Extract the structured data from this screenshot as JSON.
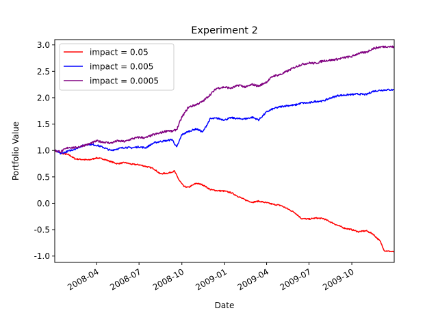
{
  "chart_data": {
    "type": "line",
    "title": "Experiment 2",
    "xlabel": "Date",
    "ylabel": "Portfolio Value",
    "x_range": [
      "2008-01-02",
      "2009-12-31"
    ],
    "xlim": [
      "2008-01-02",
      "2009-12-31"
    ],
    "ylim": [
      -1.12,
      3.1
    ],
    "x_ticks": [
      "2008-04",
      "2008-07",
      "2008-10",
      "2009-01",
      "2009-04",
      "2009-07",
      "2009-10"
    ],
    "y_ticks": [
      "-1.0",
      "-0.5",
      "0.0",
      "0.5",
      "1.0",
      "1.5",
      "2.0",
      "2.5",
      "3.0"
    ],
    "grid": false,
    "legend_position": "top-left",
    "series": [
      {
        "name": "impact = 0.05",
        "color": "#ff0000",
        "points": [
          [
            "2008-01-02",
            1.0
          ],
          [
            "2008-01-15",
            0.95
          ],
          [
            "2008-02-01",
            0.92
          ],
          [
            "2008-02-15",
            0.84
          ],
          [
            "2008-03-01",
            0.83
          ],
          [
            "2008-03-15",
            0.82
          ],
          [
            "2008-04-01",
            0.86
          ],
          [
            "2008-04-15",
            0.84
          ],
          [
            "2008-05-01",
            0.79
          ],
          [
            "2008-05-15",
            0.75
          ],
          [
            "2008-06-01",
            0.77
          ],
          [
            "2008-06-15",
            0.74
          ],
          [
            "2008-07-01",
            0.73
          ],
          [
            "2008-07-15",
            0.7
          ],
          [
            "2008-08-01",
            0.66
          ],
          [
            "2008-08-15",
            0.56
          ],
          [
            "2008-09-01",
            0.57
          ],
          [
            "2008-09-15",
            0.61
          ],
          [
            "2008-09-25",
            0.44
          ],
          [
            "2008-10-05",
            0.32
          ],
          [
            "2008-10-15",
            0.3
          ],
          [
            "2008-11-01",
            0.38
          ],
          [
            "2008-11-15",
            0.35
          ],
          [
            "2008-12-01",
            0.26
          ],
          [
            "2008-12-15",
            0.24
          ],
          [
            "2009-01-01",
            0.23
          ],
          [
            "2009-01-15",
            0.2
          ],
          [
            "2009-02-01",
            0.12
          ],
          [
            "2009-02-15",
            0.06
          ],
          [
            "2009-03-01",
            0.02
          ],
          [
            "2009-03-15",
            0.04
          ],
          [
            "2009-04-01",
            0.01
          ],
          [
            "2009-04-15",
            -0.02
          ],
          [
            "2009-05-01",
            -0.04
          ],
          [
            "2009-05-15",
            -0.1
          ],
          [
            "2009-06-01",
            -0.18
          ],
          [
            "2009-06-15",
            -0.29
          ],
          [
            "2009-07-01",
            -0.3
          ],
          [
            "2009-07-15",
            -0.28
          ],
          [
            "2009-08-01",
            -0.29
          ],
          [
            "2009-08-15",
            -0.35
          ],
          [
            "2009-09-01",
            -0.42
          ],
          [
            "2009-09-15",
            -0.47
          ],
          [
            "2009-10-01",
            -0.5
          ],
          [
            "2009-10-15",
            -0.54
          ],
          [
            "2009-11-01",
            -0.52
          ],
          [
            "2009-11-15",
            -0.58
          ],
          [
            "2009-12-01",
            -0.72
          ],
          [
            "2009-12-10",
            -0.9
          ],
          [
            "2009-12-31",
            -0.92
          ]
        ]
      },
      {
        "name": "impact = 0.005",
        "color": "#0000ff",
        "points": [
          [
            "2008-01-02",
            1.0
          ],
          [
            "2008-01-15",
            0.94
          ],
          [
            "2008-02-01",
            0.99
          ],
          [
            "2008-02-15",
            1.03
          ],
          [
            "2008-03-01",
            1.09
          ],
          [
            "2008-03-15",
            1.12
          ],
          [
            "2008-04-01",
            1.1
          ],
          [
            "2008-04-15",
            1.06
          ],
          [
            "2008-05-01",
            1.0
          ],
          [
            "2008-05-15",
            1.03
          ],
          [
            "2008-06-01",
            1.06
          ],
          [
            "2008-06-15",
            1.05
          ],
          [
            "2008-07-01",
            1.07
          ],
          [
            "2008-07-15",
            1.05
          ],
          [
            "2008-08-01",
            1.14
          ],
          [
            "2008-08-15",
            1.17
          ],
          [
            "2008-09-01",
            1.19
          ],
          [
            "2008-09-10",
            1.21
          ],
          [
            "2008-09-20",
            1.06
          ],
          [
            "2008-10-01",
            1.3
          ],
          [
            "2008-10-15",
            1.36
          ],
          [
            "2008-11-01",
            1.41
          ],
          [
            "2008-11-15",
            1.35
          ],
          [
            "2008-12-01",
            1.6
          ],
          [
            "2008-12-15",
            1.61
          ],
          [
            "2009-01-01",
            1.58
          ],
          [
            "2009-01-15",
            1.62
          ],
          [
            "2009-02-01",
            1.6
          ],
          [
            "2009-02-15",
            1.6
          ],
          [
            "2009-03-01",
            1.63
          ],
          [
            "2009-03-15",
            1.58
          ],
          [
            "2009-04-01",
            1.73
          ],
          [
            "2009-04-15",
            1.79
          ],
          [
            "2009-05-01",
            1.83
          ],
          [
            "2009-05-15",
            1.85
          ],
          [
            "2009-06-01",
            1.86
          ],
          [
            "2009-06-15",
            1.9
          ],
          [
            "2009-07-01",
            1.9
          ],
          [
            "2009-07-15",
            1.93
          ],
          [
            "2009-08-01",
            1.94
          ],
          [
            "2009-08-15",
            1.99
          ],
          [
            "2009-09-01",
            2.04
          ],
          [
            "2009-09-15",
            2.05
          ],
          [
            "2009-10-01",
            2.06
          ],
          [
            "2009-10-15",
            2.07
          ],
          [
            "2009-11-01",
            2.06
          ],
          [
            "2009-11-15",
            2.12
          ],
          [
            "2009-12-01",
            2.14
          ],
          [
            "2009-12-15",
            2.15
          ],
          [
            "2009-12-31",
            2.15
          ]
        ]
      },
      {
        "name": "impact = 0.0005",
        "color": "#800080",
        "points": [
          [
            "2008-01-02",
            1.0
          ],
          [
            "2008-01-15",
            0.98
          ],
          [
            "2008-02-01",
            1.06
          ],
          [
            "2008-02-15",
            1.05
          ],
          [
            "2008-03-01",
            1.09
          ],
          [
            "2008-03-15",
            1.12
          ],
          [
            "2008-04-01",
            1.18
          ],
          [
            "2008-04-15",
            1.16
          ],
          [
            "2008-05-01",
            1.14
          ],
          [
            "2008-05-15",
            1.18
          ],
          [
            "2008-06-01",
            1.17
          ],
          [
            "2008-06-15",
            1.22
          ],
          [
            "2008-07-01",
            1.25
          ],
          [
            "2008-07-15",
            1.24
          ],
          [
            "2008-08-01",
            1.3
          ],
          [
            "2008-08-15",
            1.33
          ],
          [
            "2008-09-01",
            1.38
          ],
          [
            "2008-09-10",
            1.36
          ],
          [
            "2008-09-20",
            1.4
          ],
          [
            "2008-10-01",
            1.63
          ],
          [
            "2008-10-15",
            1.82
          ],
          [
            "2008-11-01",
            1.87
          ],
          [
            "2008-11-15",
            1.93
          ],
          [
            "2008-12-01",
            2.06
          ],
          [
            "2008-12-15",
            2.18
          ],
          [
            "2009-01-01",
            2.2
          ],
          [
            "2009-01-15",
            2.18
          ],
          [
            "2009-02-01",
            2.24
          ],
          [
            "2009-02-15",
            2.2
          ],
          [
            "2009-03-01",
            2.25
          ],
          [
            "2009-03-15",
            2.22
          ],
          [
            "2009-04-01",
            2.3
          ],
          [
            "2009-04-15",
            2.41
          ],
          [
            "2009-05-01",
            2.44
          ],
          [
            "2009-05-15",
            2.5
          ],
          [
            "2009-06-01",
            2.58
          ],
          [
            "2009-06-15",
            2.63
          ],
          [
            "2009-07-01",
            2.66
          ],
          [
            "2009-07-15",
            2.65
          ],
          [
            "2009-08-01",
            2.7
          ],
          [
            "2009-08-15",
            2.71
          ],
          [
            "2009-09-01",
            2.73
          ],
          [
            "2009-09-15",
            2.76
          ],
          [
            "2009-10-01",
            2.78
          ],
          [
            "2009-10-15",
            2.84
          ],
          [
            "2009-11-01",
            2.86
          ],
          [
            "2009-11-15",
            2.93
          ],
          [
            "2009-12-01",
            2.96
          ],
          [
            "2009-12-15",
            2.97
          ],
          [
            "2009-12-31",
            2.96
          ]
        ]
      }
    ]
  }
}
